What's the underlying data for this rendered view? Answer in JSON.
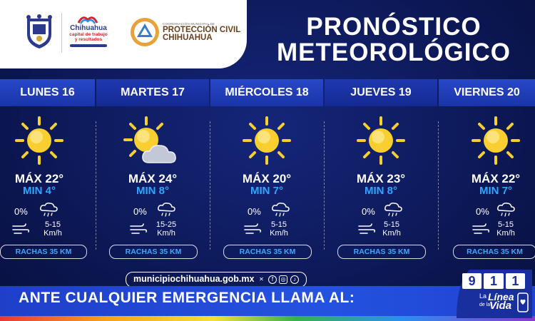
{
  "header": {
    "municipio": "Chihuahua",
    "tagline_1": "capital de trabajo",
    "tagline_2": "y resultados",
    "pc_small": "COORDINACIÓN MUNICIPAL DE",
    "pc_line1": "PROTECCIÓN CIVIL",
    "pc_line2": "CHIHUAHUA",
    "title_1": "PRONÓSTICO",
    "title_2": "METEOROLÓGICO"
  },
  "days": [
    {
      "day": "LUNES 16",
      "max": "MÁX 22°",
      "min": "MIN 4°",
      "rain": "0%",
      "wind_1": "5-15",
      "wind_2": "Km/h",
      "gusts": "RACHAS 35 KM",
      "icon": "sun-icon"
    },
    {
      "day": "MARTES 17",
      "max": "MÁX 24°",
      "min": "MIN 8°",
      "rain": "0%",
      "wind_1": "15-25",
      "wind_2": "Km/h",
      "gusts": "RACHAS 35 KM",
      "icon": "partly-cloudy-icon"
    },
    {
      "day": "MIÉRCOLES 18",
      "max": "MÁX 20°",
      "min": "MIN 7°",
      "rain": "0%",
      "wind_1": "5-15",
      "wind_2": "Km/h",
      "gusts": "RACHAS 35 KM",
      "icon": "sun-icon"
    },
    {
      "day": "JUEVES 19",
      "max": "MÁX 23°",
      "min": "MIN 8°",
      "rain": "0%",
      "wind_1": "5-15",
      "wind_2": "Km/h",
      "gusts": "RACHAS 35 KM",
      "icon": "sun-icon"
    },
    {
      "day": "VIERNES 20",
      "max": "MÁX 22°",
      "min": "MIN 7°",
      "rain": "0%",
      "wind_1": "5-15",
      "wind_2": "Km/h",
      "gusts": "RACHAS 35 KM",
      "icon": "sun-icon"
    }
  ],
  "footer": {
    "url": "municipiochihuahua.gob.mx",
    "emergency": "ANTE CUALQUIER EMERGENCIA LLAMA AL:",
    "digits": [
      "9",
      "1",
      "1"
    ],
    "la": "La",
    "linea": "Línea",
    "dela": "de la",
    "vida": "Vida"
  },
  "colors": {
    "background": "#0d1a5c",
    "day_header": "#2848c8",
    "min_temp": "#2fa6ff",
    "sun": "#f8cf2f",
    "emergency_bar": "#2452e0"
  }
}
